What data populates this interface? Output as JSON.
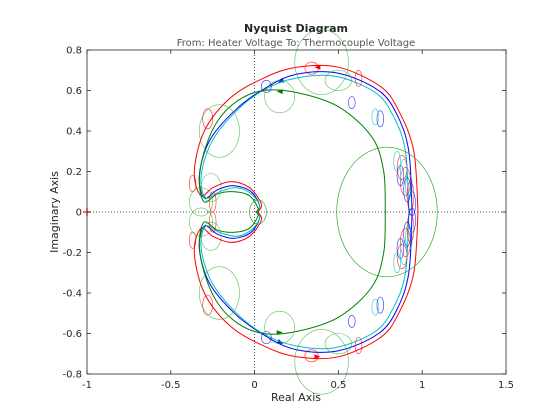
{
  "chart_data": {
    "type": "line",
    "title": "Nyquist Diagram",
    "subtitle": "From: Heater Voltage  To: Thermocouple Voltage",
    "xlabel": "Real Axis",
    "ylabel": "Imaginary Axis",
    "xlim": [
      -1,
      1.5
    ],
    "ylim": [
      -0.8,
      0.8
    ],
    "xticks": [
      -1,
      -0.5,
      0,
      0.5,
      1,
      1.5
    ],
    "yticks": [
      -0.8,
      -0.6,
      -0.4,
      -0.2,
      0,
      0.2,
      0.4,
      0.6,
      0.8
    ],
    "xtick_labels": [
      "-1",
      "-0.5",
      "0",
      "0.5",
      "1",
      "1.5"
    ],
    "ytick_labels": [
      "-0.8",
      "-0.6",
      "-0.4",
      "-0.2",
      "0",
      "0.2",
      "0.4",
      "0.6",
      "0.8"
    ],
    "zero_lines": "dotted",
    "critical_point": {
      "x": -1,
      "y": 0,
      "marker": "+"
    },
    "series": [
      {
        "color": "#ff0000",
        "width": 1.0,
        "upper": [
          [
            0.975,
            0.0
          ],
          [
            0.95,
            0.3
          ],
          [
            0.86,
            0.5
          ],
          [
            0.75,
            0.62
          ],
          [
            0.5,
            0.715
          ],
          [
            0.25,
            0.715
          ],
          [
            0.05,
            0.66
          ],
          [
            -0.15,
            0.56
          ],
          [
            -0.3,
            0.4
          ],
          [
            -0.36,
            0.2
          ],
          [
            -0.32,
            0.08
          ],
          [
            -0.25,
            0.12
          ],
          [
            -0.14,
            0.15
          ],
          [
            -0.03,
            0.12
          ],
          [
            0.04,
            0.04
          ],
          [
            0.02,
            0.0
          ]
        ],
        "upper_arrows": [
          4
        ],
        "lower_arrows": [
          4
        ]
      },
      {
        "color": "#0000ff",
        "width": 1.0,
        "upper": [
          [
            0.94,
            0.0
          ],
          [
            0.92,
            0.3
          ],
          [
            0.85,
            0.48
          ],
          [
            0.74,
            0.6
          ],
          [
            0.5,
            0.685
          ],
          [
            0.25,
            0.68
          ],
          [
            0.06,
            0.61
          ],
          [
            -0.12,
            0.5
          ],
          [
            -0.27,
            0.35
          ],
          [
            -0.33,
            0.18
          ],
          [
            -0.3,
            0.07
          ],
          [
            -0.22,
            0.11
          ],
          [
            -0.12,
            0.13
          ],
          [
            -0.02,
            0.1
          ],
          [
            0.03,
            0.03
          ],
          [
            0.01,
            0.0
          ]
        ],
        "upper_arrows": [
          5
        ],
        "lower_arrows": [
          5
        ]
      },
      {
        "color": "#00bfbf",
        "width": 1.0,
        "upper": [
          [
            0.92,
            0.0
          ],
          [
            0.9,
            0.3
          ],
          [
            0.83,
            0.47
          ],
          [
            0.72,
            0.59
          ],
          [
            0.48,
            0.67
          ],
          [
            0.24,
            0.66
          ],
          [
            0.05,
            0.6
          ],
          [
            -0.12,
            0.49
          ],
          [
            -0.26,
            0.34
          ],
          [
            -0.32,
            0.17
          ],
          [
            -0.29,
            0.07
          ],
          [
            -0.21,
            0.1
          ],
          [
            -0.11,
            0.12
          ],
          [
            -0.02,
            0.09
          ],
          [
            0.03,
            0.03
          ],
          [
            0.01,
            0.0
          ]
        ],
        "upper_arrows": [],
        "lower_arrows": []
      },
      {
        "color": "#008000",
        "width": 1.0,
        "upper": [
          [
            0.78,
            0.0
          ],
          [
            0.77,
            0.2
          ],
          [
            0.7,
            0.37
          ],
          [
            0.5,
            0.52
          ],
          [
            0.25,
            0.59
          ],
          [
            0.05,
            0.6
          ],
          [
            -0.1,
            0.55
          ],
          [
            -0.22,
            0.45
          ],
          [
            -0.3,
            0.3
          ],
          [
            -0.33,
            0.15
          ],
          [
            -0.3,
            0.05
          ],
          [
            -0.22,
            0.09
          ],
          [
            -0.12,
            0.1
          ],
          [
            -0.03,
            0.08
          ],
          [
            0.02,
            0.02
          ],
          [
            0.01,
            0.0
          ]
        ],
        "upper_arrows": [
          4
        ],
        "lower_arrows": [
          4
        ]
      }
    ],
    "uncertainty_loops": {
      "red": [
        [
          0.88,
          0.22,
          0.03,
          0.06
        ],
        [
          0.9,
          0.15,
          0.03,
          0.07
        ],
        [
          0.93,
          0.08,
          0.02,
          0.07
        ],
        [
          0.34,
          0.71,
          0.04,
          0.03
        ],
        [
          0.62,
          0.66,
          0.02,
          0.04
        ],
        [
          -0.28,
          0.46,
          0.03,
          0.05
        ],
        [
          -0.37,
          0.14,
          0.02,
          0.04
        ],
        [
          -0.25,
          -0.05,
          0.02,
          0.05
        ]
      ],
      "blue": [
        [
          0.87,
          0.18,
          0.02,
          0.05
        ],
        [
          0.91,
          0.11,
          0.02,
          0.06
        ],
        [
          0.94,
          0.04,
          0.02,
          0.06
        ],
        [
          0.75,
          0.46,
          0.02,
          0.04
        ],
        [
          0.58,
          0.54,
          0.02,
          0.03
        ],
        [
          0.07,
          0.62,
          0.03,
          0.03
        ]
      ],
      "cyan": [
        [
          0.85,
          0.25,
          0.02,
          0.05
        ],
        [
          0.89,
          0.2,
          0.02,
          0.06
        ],
        [
          0.92,
          0.13,
          0.02,
          0.06
        ],
        [
          0.72,
          0.47,
          0.02,
          0.04
        ]
      ],
      "green": [
        [
          0.4,
          0.74,
          0.16,
          0.16
        ],
        [
          0.79,
          0.0,
          0.3,
          0.32
        ],
        [
          -0.21,
          0.4,
          0.12,
          0.13
        ],
        [
          -0.26,
          0.12,
          0.06,
          0.07
        ],
        [
          -0.32,
          -0.05,
          0.07,
          0.07
        ],
        [
          0.15,
          0.57,
          0.09,
          0.08
        ],
        [
          0.5,
          0.65,
          0.08,
          0.05
        ],
        [
          0.02,
          0.0,
          0.05,
          0.06
        ]
      ]
    }
  }
}
